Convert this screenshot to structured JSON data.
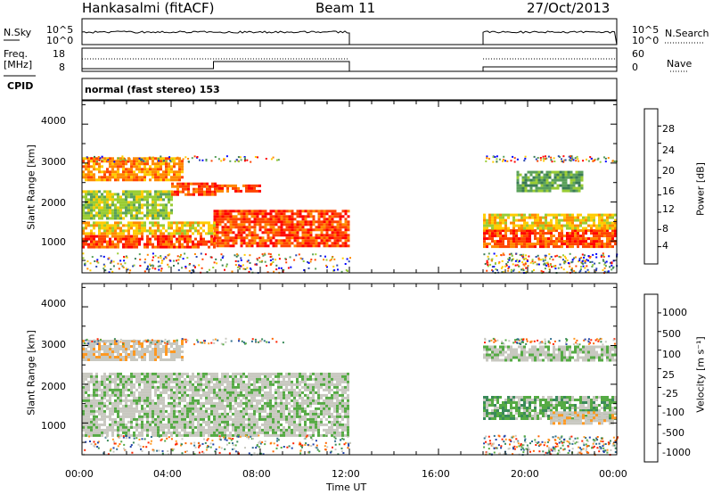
{
  "header": {
    "station": "Hankasalmi (fitACF)",
    "beam": "Beam 11",
    "date": "27/Oct/2013"
  },
  "noise_panel": {
    "left_label": "N.Sky",
    "left_ticks": [
      "10^5",
      "10^0"
    ],
    "right_label": "N.Search",
    "right_ticks": [
      "10^5",
      "10^0"
    ]
  },
  "freq_panel": {
    "left_label_1": "Freq.",
    "left_label_2": "[MHz]",
    "left_ticks": [
      "18",
      "8"
    ],
    "right_label": "Nave",
    "right_ticks": [
      "60",
      "0"
    ]
  },
  "cpid": {
    "label": "CPID",
    "text": "normal (fast stereo) 153"
  },
  "power_panel": {
    "ylabel": "Slant Range [km]",
    "yticks": [
      "4000",
      "3000",
      "2000",
      "1000"
    ],
    "colorbar_label": "Power [dB]",
    "colorbar_ticks": [
      "28",
      "24",
      "20",
      "16",
      "12",
      "8",
      "4"
    ],
    "colors": [
      "#0000ff",
      "#2b48b0",
      "#3a7a56",
      "#5aa05a",
      "#99cc33",
      "#ffcc00",
      "#ff8800",
      "#ff4400",
      "#ff0000"
    ]
  },
  "velocity_panel": {
    "ylabel": "Slant Range [km]",
    "yticks": [
      "4000",
      "3000",
      "2000",
      "1000"
    ],
    "colorbar_label": "Velocity [m s⁻¹]",
    "colorbar_ticks": [
      "1000",
      "500",
      "100",
      "25",
      "-25",
      "-100",
      "-500",
      "-1000"
    ],
    "colors": [
      "#2244aa",
      "#2f6e8e",
      "#3a8a5a",
      "#55aa44",
      "#c8c8c0",
      "#c8c8c0",
      "#ff9922",
      "#ff6600",
      "#ff2200"
    ]
  },
  "xaxis": {
    "label": "Time UT",
    "ticks": [
      "00:00",
      "04:00",
      "08:00",
      "12:00",
      "16:00",
      "20:00",
      "00:00"
    ]
  },
  "chart_data": [
    {
      "type": "heatmap",
      "title": "Power",
      "xlabel": "Time UT",
      "ylabel": "Slant Range [km]",
      "xlim": [
        0,
        24
      ],
      "ylim": [
        180,
        4600
      ],
      "colorbar_range_db": [
        0,
        30
      ],
      "data_gap_hours": [
        12,
        18
      ],
      "regions": [
        {
          "x": [
            0,
            5.9
          ],
          "y": [
            850,
            1150
          ],
          "value_db": 26
        },
        {
          "x": [
            5.9,
            12
          ],
          "y": [
            850,
            1800
          ],
          "value_db": 24
        },
        {
          "x": [
            0,
            6
          ],
          "y": [
            1200,
            1500
          ],
          "value_db": 18
        },
        {
          "x": [
            0,
            4
          ],
          "y": [
            1600,
            2300
          ],
          "value_db": 14
        },
        {
          "x": [
            4,
            6
          ],
          "y": [
            2200,
            2500
          ],
          "value_db": 24
        },
        {
          "x": [
            6,
            8
          ],
          "y": [
            2250,
            2450
          ],
          "value_db": 24
        },
        {
          "x": [
            0,
            4.5
          ],
          "y": [
            2600,
            3150
          ],
          "value_db": 20
        },
        {
          "x": [
            18,
            24
          ],
          "y": [
            850,
            1300
          ],
          "value_db": 26
        },
        {
          "x": [
            18,
            24
          ],
          "y": [
            1300,
            1700
          ],
          "value_db": 18
        },
        {
          "x": [
            19.5,
            22.5
          ],
          "y": [
            2300,
            2800
          ],
          "value_db": 12
        }
      ]
    },
    {
      "type": "heatmap",
      "title": "Velocity",
      "xlabel": "Time UT",
      "ylabel": "Slant Range [km]",
      "xlim": [
        0,
        24
      ],
      "ylim": [
        180,
        4600
      ],
      "colorbar_range_ms": [
        -1000,
        1000
      ],
      "data_gap_hours": [
        12,
        18
      ],
      "regions": [
        {
          "x": [
            0,
            12
          ],
          "y": [
            700,
            2300
          ],
          "value_ms": 0
        },
        {
          "x": [
            0,
            4.5
          ],
          "y": [
            2600,
            3150
          ],
          "value_ms": -200
        },
        {
          "x": [
            18,
            24
          ],
          "y": [
            1100,
            1700
          ],
          "value_ms": 200
        },
        {
          "x": [
            21,
            24
          ],
          "y": [
            1000,
            1300
          ],
          "value_ms": -300
        },
        {
          "x": [
            18,
            24
          ],
          "y": [
            2600,
            3000
          ],
          "value_ms": 0
        }
      ]
    }
  ]
}
